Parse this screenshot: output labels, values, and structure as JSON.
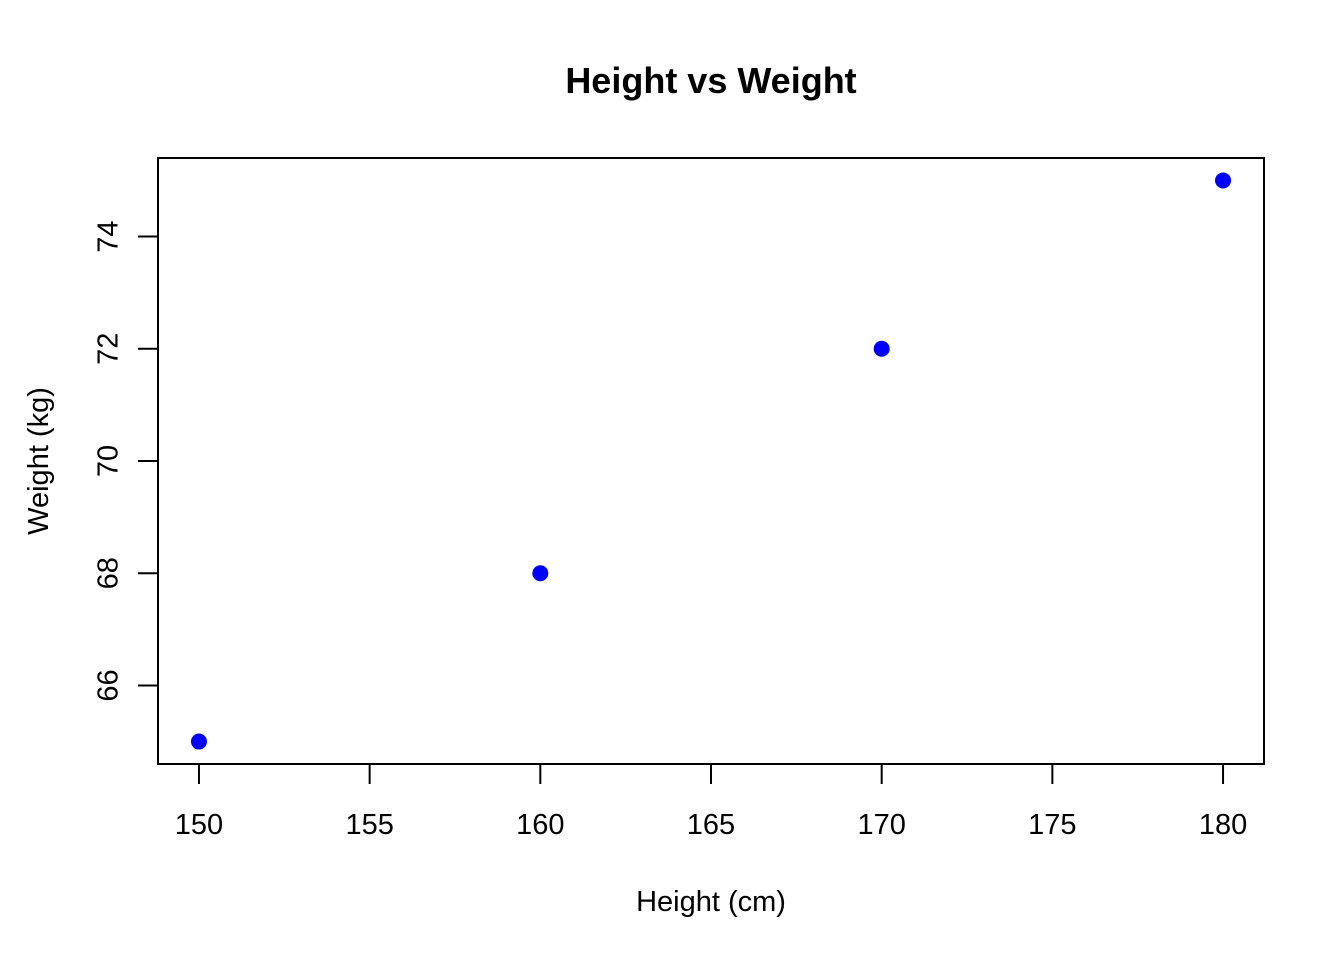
{
  "chart_data": {
    "type": "scatter",
    "title": "Height vs Weight",
    "xlabel": "Height (cm)",
    "ylabel": "Weight (kg)",
    "x": [
      150,
      160,
      170,
      180
    ],
    "y": [
      65,
      68,
      72,
      75
    ],
    "xlim": [
      148.8,
      181.2
    ],
    "ylim": [
      64.6,
      75.4
    ],
    "xticks": [
      150,
      155,
      160,
      165,
      170,
      175,
      180
    ],
    "yticks": [
      66,
      68,
      70,
      72,
      74
    ],
    "grid": false,
    "point_color": "#0000ff"
  }
}
